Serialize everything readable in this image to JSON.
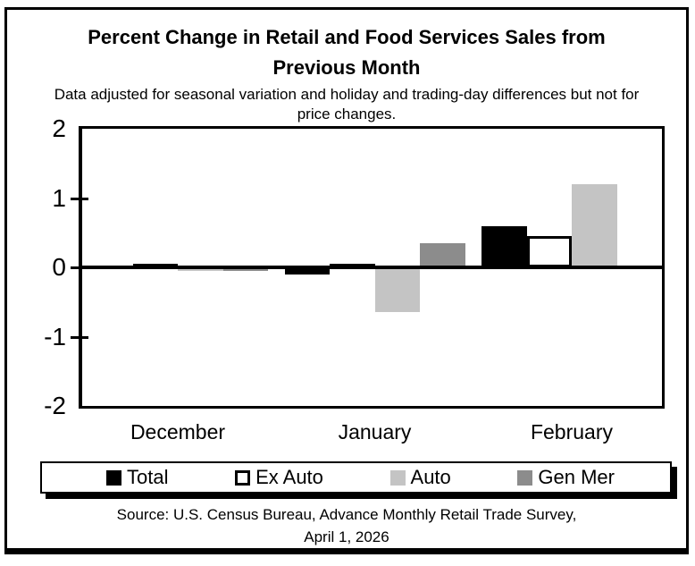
{
  "header": {
    "title_lines": [
      "Percent Change in Retail and Food Services Sales from",
      "Previous Month"
    ],
    "subtitle_lines": [
      "Data adjusted for seasonal variation and holiday and trading-day differences but not for",
      "price changes."
    ]
  },
  "chart_data": {
    "type": "bar",
    "title": "Percent Change in Retail and Food Services Sales from Previous Month",
    "xlabel": "",
    "ylabel": "",
    "categories": [
      "December",
      "January",
      "February"
    ],
    "series": [
      {
        "name": "Total",
        "color": "#000000",
        "outlined": false,
        "values": [
          0.0,
          -0.1,
          0.6
        ]
      },
      {
        "name": "Ex Auto",
        "color": "#ffffff",
        "outlined": true,
        "values": [
          0.05,
          0.05,
          0.45
        ]
      },
      {
        "name": "Auto",
        "color": "#c4c4c4",
        "outlined": false,
        "values": [
          -0.05,
          -0.65,
          1.2
        ]
      },
      {
        "name": "Gen Mer",
        "color": "#8c8c8c",
        "outlined": false,
        "values": [
          -0.05,
          0.35,
          null
        ]
      }
    ],
    "ylim": [
      -2,
      2
    ],
    "yticks": [
      2,
      1,
      0,
      -1,
      -2
    ],
    "grid": false,
    "legend_position": "bottom",
    "axis_color": "#000000"
  },
  "footer": {
    "source_lines": [
      "Source: U.S. Census Bureau, Advance Monthly Retail Trade Survey,",
      "April 1, 2026"
    ]
  }
}
